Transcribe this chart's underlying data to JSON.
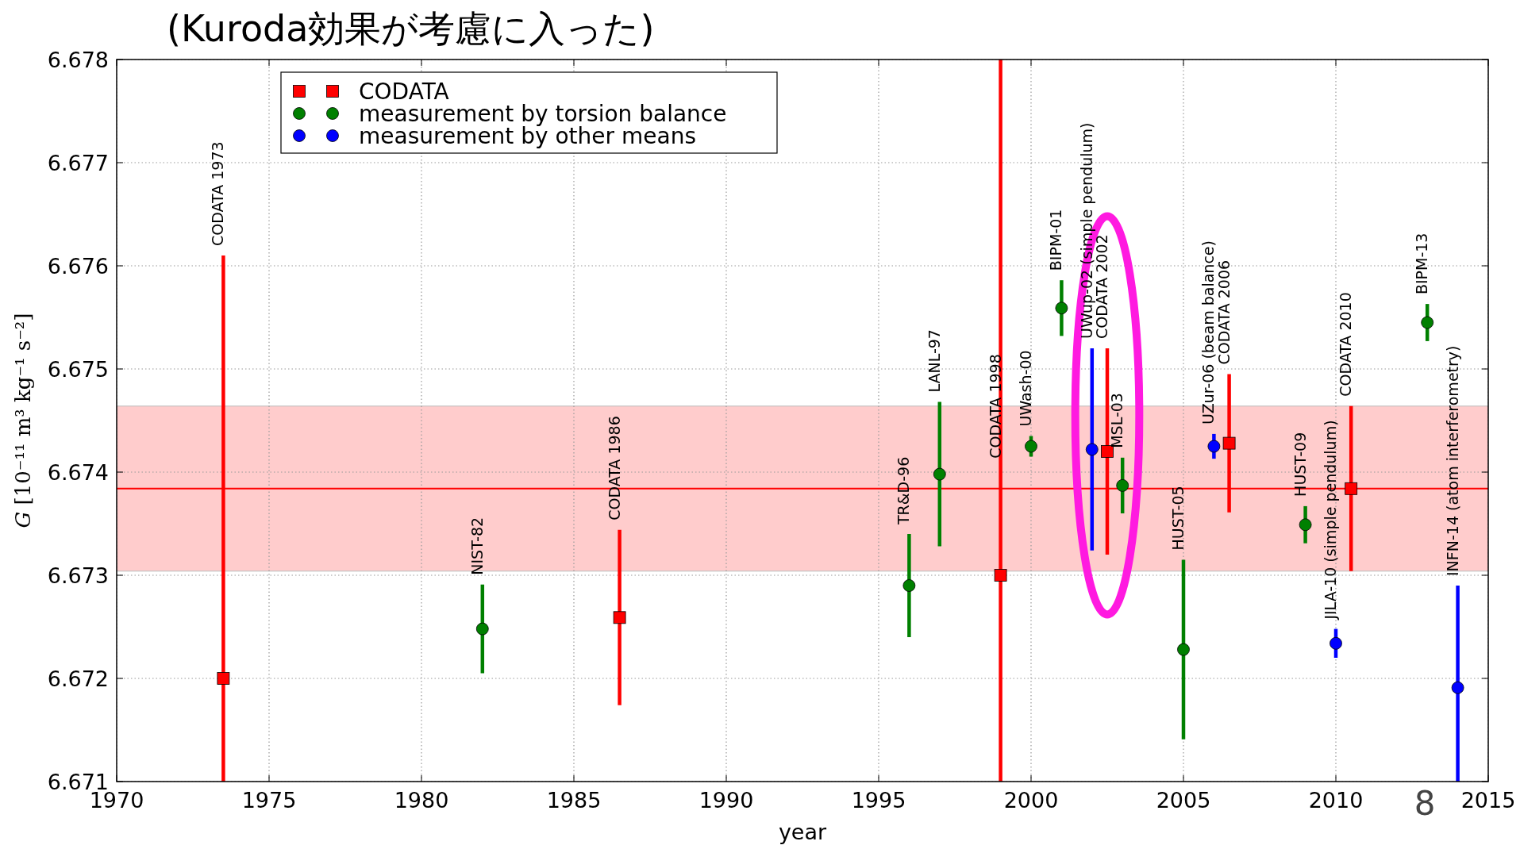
{
  "chart_data": {
    "type": "scatter",
    "title": "(Kuroda効果が考慮に入った)",
    "xlabel": "year",
    "ylabel": "G [10⁻¹¹ m³ kg⁻¹ s⁻²]",
    "xlim": [
      1970,
      2015
    ],
    "xticks": [
      1970,
      1975,
      1980,
      1985,
      1990,
      1995,
      2000,
      2005,
      2010,
      2015
    ],
    "ylim": [
      6.671,
      6.678
    ],
    "yticks": [
      6.671,
      6.672,
      6.673,
      6.674,
      6.675,
      6.676,
      6.677,
      6.678
    ],
    "grid": true,
    "legend": "top left",
    "series": [
      {
        "name": "CODATA",
        "color": "#ff0000",
        "marker": "square",
        "x": [
          1973.5,
          1986.5,
          1999,
          2002.5,
          2006.5,
          2010.5
        ],
        "values": [
          6.672,
          6.67259,
          6.673,
          6.6742,
          6.67428,
          6.67384
        ],
        "errors": [
          [
            6.671,
            6.6761
          ],
          0.00085,
          [
            6.671,
            6.678
          ],
          0.001,
          0.00067,
          0.0008
        ]
      },
      {
        "name": "measurement by torsion balance",
        "color": "#008000",
        "marker": "circle",
        "x": [
          1982,
          1996,
          1997,
          2000,
          2001,
          2003,
          2005,
          2009,
          2013
        ],
        "values": [
          6.67248,
          6.6729,
          6.67398,
          6.67425,
          6.67559,
          6.67387,
          6.67228,
          6.67349,
          6.67545
        ],
        "errors": [
          0.00043,
          0.0005,
          0.0007,
          0.0001,
          0.00027,
          0.00027,
          0.00087,
          0.00018,
          0.00018
        ]
      },
      {
        "name": "measurement by other means",
        "color": "#0000ff",
        "marker": "circle",
        "x": [
          2002,
          2006,
          2010,
          2014
        ],
        "values": [
          6.67422,
          6.67425,
          6.67234,
          6.67191
        ],
        "errors": [
          0.00098,
          0.00012,
          0.00014,
          [
            6.671,
            6.6729
          ]
        ]
      }
    ],
    "ref_lines": [
      {
        "axis": "y",
        "value": 6.67384,
        "color": "#ff0000"
      }
    ],
    "bands": [
      {
        "axis": "y",
        "from": 6.67304,
        "to": 6.67464,
        "color": "#ffcccc"
      }
    ],
    "annotations": [
      {
        "text": "CODATA 1973",
        "x": 1973.5,
        "y": 6.6761
      },
      {
        "text": "NIST-82",
        "x": 1982,
        "y": 6.67291
      },
      {
        "text": "CODATA 1986",
        "x": 1986.5,
        "y": 6.67344
      },
      {
        "text": "TR&D-96",
        "x": 1996,
        "y": 6.6734
      },
      {
        "text": "LANL-97",
        "x": 1997,
        "y": 6.67468
      },
      {
        "text": "CODATA 1998",
        "x": 1999,
        "y": 6.67404
      },
      {
        "text": "UWash-00",
        "x": 2000,
        "y": 6.67435
      },
      {
        "text": "BIPM-01",
        "x": 2001,
        "y": 6.67586
      },
      {
        "text": "UWup-02 (simple pendulum)",
        "x": 2002,
        "y": 6.6752
      },
      {
        "text": "CODATA 2002",
        "x": 2002.5,
        "y": 6.6752
      },
      {
        "text": "MSL-03",
        "x": 2003,
        "y": 6.67414
      },
      {
        "text": "HUST-05",
        "x": 2005,
        "y": 6.67315
      },
      {
        "text": "UZur-06 (beam balance)",
        "x": 2006,
        "y": 6.67437
      },
      {
        "text": "CODATA 2006",
        "x": 2006.5,
        "y": 6.67495
      },
      {
        "text": "HUST-09",
        "x": 2009,
        "y": 6.67367
      },
      {
        "text": "JILA-10 (simple pendulum)",
        "x": 2010,
        "y": 6.67248
      },
      {
        "text": "CODATA 2010",
        "x": 2010.5,
        "y": 6.67464
      },
      {
        "text": "BIPM-13",
        "x": 2013,
        "y": 6.67563
      },
      {
        "text": "INFN-14 (atom interferometry)",
        "x": 2014,
        "y": 6.6729
      },
      "8"
    ]
  }
}
